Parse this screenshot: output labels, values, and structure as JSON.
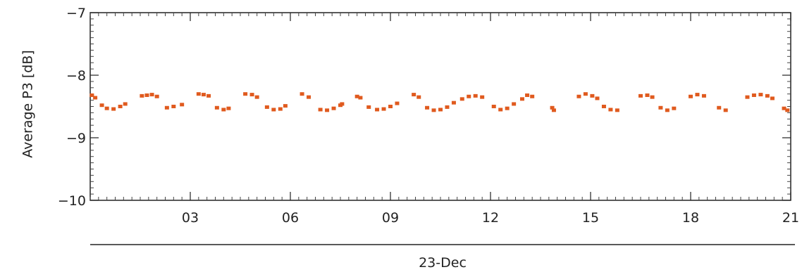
{
  "chart_data": {
    "type": "scatter",
    "title": "",
    "xlabel": "23-Dec",
    "ylabel": "Average P3 [dB]",
    "xlim": [
      0,
      21
    ],
    "ylim": [
      -10,
      -7
    ],
    "x_ticks": [
      "03",
      "06",
      "09",
      "12",
      "15",
      "18",
      "21"
    ],
    "y_ticks": [
      "-7",
      "-8",
      "-9",
      "-10"
    ],
    "grid": false,
    "series": [
      {
        "marker_color": "#e05a1e",
        "points": [
          [
            0.05,
            -8.32
          ],
          [
            0.15,
            -8.36
          ],
          [
            0.35,
            -8.48
          ],
          [
            0.5,
            -8.53
          ],
          [
            0.7,
            -8.54
          ],
          [
            0.9,
            -8.5
          ],
          [
            1.05,
            -8.46
          ],
          [
            1.55,
            -8.33
          ],
          [
            1.7,
            -8.32
          ],
          [
            1.85,
            -8.31
          ],
          [
            2.0,
            -8.34
          ],
          [
            2.3,
            -8.52
          ],
          [
            2.5,
            -8.5
          ],
          [
            2.75,
            -8.47
          ],
          [
            3.25,
            -8.3
          ],
          [
            3.4,
            -8.31
          ],
          [
            3.55,
            -8.33
          ],
          [
            3.8,
            -8.52
          ],
          [
            4.0,
            -8.55
          ],
          [
            4.15,
            -8.53
          ],
          [
            4.65,
            -8.3
          ],
          [
            4.85,
            -8.31
          ],
          [
            5.0,
            -8.35
          ],
          [
            5.3,
            -8.51
          ],
          [
            5.5,
            -8.55
          ],
          [
            5.7,
            -8.54
          ],
          [
            5.85,
            -8.49
          ],
          [
            6.35,
            -8.3
          ],
          [
            6.55,
            -8.35
          ],
          [
            6.9,
            -8.55
          ],
          [
            7.1,
            -8.56
          ],
          [
            7.3,
            -8.53
          ],
          [
            7.5,
            -8.48
          ],
          [
            7.55,
            -8.46
          ],
          [
            8.0,
            -8.34
          ],
          [
            8.1,
            -8.36
          ],
          [
            8.35,
            -8.51
          ],
          [
            8.6,
            -8.55
          ],
          [
            8.8,
            -8.54
          ],
          [
            9.0,
            -8.5
          ],
          [
            9.2,
            -8.45
          ],
          [
            9.7,
            -8.31
          ],
          [
            9.85,
            -8.35
          ],
          [
            10.1,
            -8.52
          ],
          [
            10.3,
            -8.56
          ],
          [
            10.5,
            -8.55
          ],
          [
            10.7,
            -8.51
          ],
          [
            10.9,
            -8.44
          ],
          [
            11.15,
            -8.38
          ],
          [
            11.35,
            -8.34
          ],
          [
            11.55,
            -8.33
          ],
          [
            11.75,
            -8.35
          ],
          [
            12.1,
            -8.5
          ],
          [
            12.3,
            -8.55
          ],
          [
            12.5,
            -8.53
          ],
          [
            12.7,
            -8.46
          ],
          [
            12.95,
            -8.38
          ],
          [
            13.1,
            -8.32
          ],
          [
            13.25,
            -8.34
          ],
          [
            13.85,
            -8.52
          ],
          [
            13.9,
            -8.56
          ],
          [
            14.65,
            -8.34
          ],
          [
            14.85,
            -8.3
          ],
          [
            15.05,
            -8.33
          ],
          [
            15.2,
            -8.37
          ],
          [
            15.4,
            -8.5
          ],
          [
            15.6,
            -8.55
          ],
          [
            15.8,
            -8.56
          ],
          [
            16.5,
            -8.33
          ],
          [
            16.7,
            -8.32
          ],
          [
            16.85,
            -8.35
          ],
          [
            17.1,
            -8.52
          ],
          [
            17.3,
            -8.56
          ],
          [
            17.5,
            -8.53
          ],
          [
            18.0,
            -8.34
          ],
          [
            18.2,
            -8.31
          ],
          [
            18.4,
            -8.33
          ],
          [
            18.85,
            -8.52
          ],
          [
            19.05,
            -8.56
          ],
          [
            19.7,
            -8.35
          ],
          [
            19.9,
            -8.32
          ],
          [
            20.1,
            -8.31
          ],
          [
            20.3,
            -8.33
          ],
          [
            20.45,
            -8.37
          ],
          [
            20.8,
            -8.53
          ],
          [
            20.9,
            -8.56
          ]
        ]
      }
    ]
  }
}
